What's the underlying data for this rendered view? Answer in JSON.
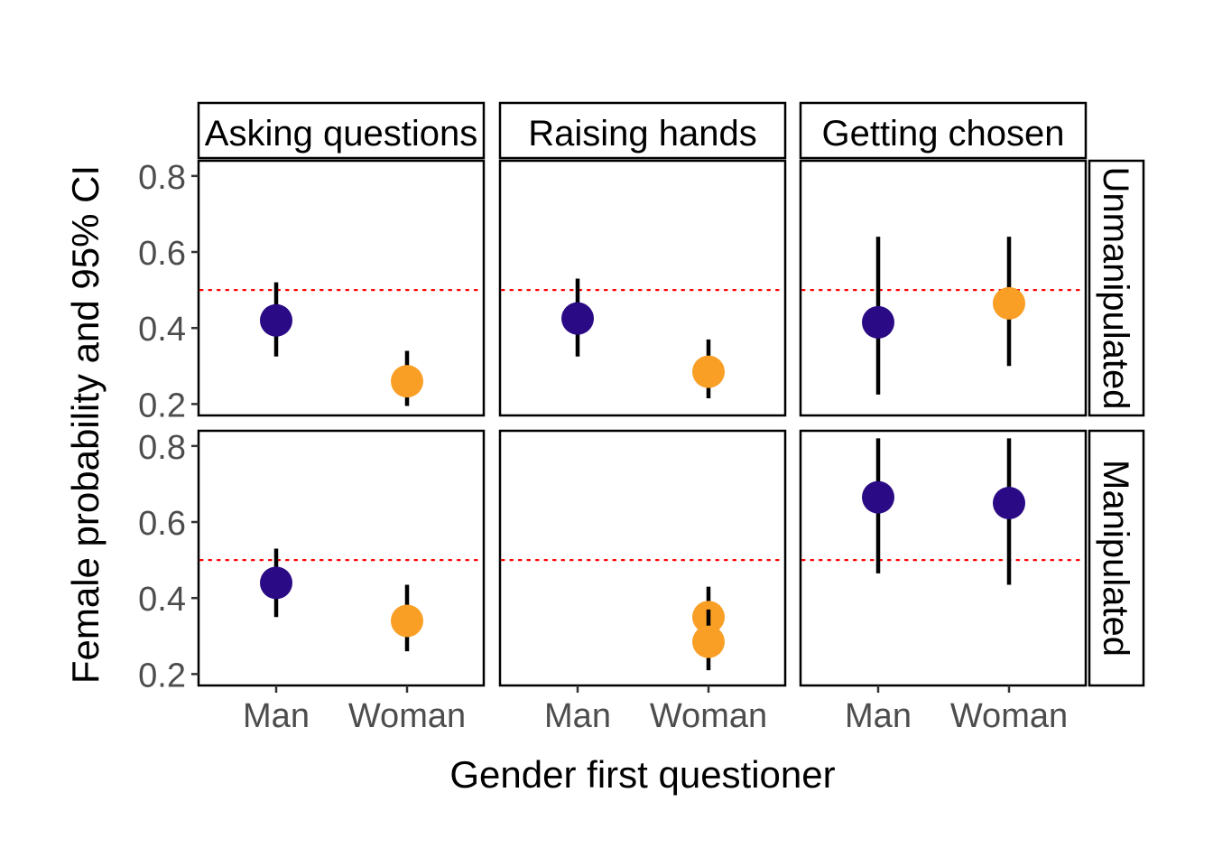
{
  "chart_data": {
    "type": "scatter",
    "title": "",
    "xlabel": "Gender first questioner",
    "ylabel": "Female probability and 95% CI",
    "ylim": [
      0.17,
      0.84
    ],
    "yticks": [
      0.2,
      0.4,
      0.6,
      0.8
    ],
    "ytick_labels": [
      "0.2",
      "0.4",
      "0.6",
      "0.8"
    ],
    "categories": [
      "Man",
      "Woman"
    ],
    "reference_line": 0.5,
    "reference_color": "#ff0000",
    "colors": {
      "Man": "#2a0a85",
      "Woman": "#f99f26",
      "errorbar": "#000000"
    },
    "facet_columns": [
      "Asking questions",
      "Raising hands",
      "Getting chosen"
    ],
    "facet_rows": [
      "Unmanipulated",
      "Manipulated"
    ],
    "panels": [
      {
        "row": "Unmanipulated",
        "col": "Asking questions",
        "points": [
          {
            "x": "Man",
            "y": 0.42,
            "lo": 0.325,
            "hi": 0.52
          },
          {
            "x": "Woman",
            "y": 0.26,
            "lo": 0.195,
            "hi": 0.34
          }
        ]
      },
      {
        "row": "Unmanipulated",
        "col": "Raising hands",
        "points": [
          {
            "x": "Man",
            "y": 0.425,
            "lo": 0.325,
            "hi": 0.53
          },
          {
            "x": "Woman",
            "y": 0.285,
            "lo": 0.215,
            "hi": 0.37
          }
        ]
      },
      {
        "row": "Unmanipulated",
        "col": "Getting chosen",
        "points": [
          {
            "x": "Man",
            "y": 0.415,
            "lo": 0.225,
            "hi": 0.64
          },
          {
            "x": "Woman",
            "y": 0.465,
            "lo": 0.3,
            "hi": 0.64
          }
        ]
      },
      {
        "row": "Manipulated",
        "col": "Asking questions",
        "points": [
          {
            "x": "Man",
            "y": 0.44,
            "lo": 0.35,
            "hi": 0.53
          },
          {
            "x": "Woman",
            "y": 0.34,
            "lo": 0.26,
            "hi": 0.435
          }
        ]
      },
      {
        "row": "Manipulated",
        "col": "Raising hands",
        "points": [
          {
            "x": "Woman",
            "y": 0.35,
            "lo": 0.275,
            "hi": 0.43
          },
          {
            "x": "Woman",
            "y": 0.285,
            "lo": 0.21,
            "hi": 0.37,
            "pos": 2
          }
        ]
      },
      {
        "row": "Manipulated",
        "col": "Getting chosen",
        "points": [
          {
            "x": "Man",
            "y": 0.665,
            "lo": 0.465,
            "hi": 0.82
          },
          {
            "x": "Man",
            "y": 0.65,
            "lo": 0.435,
            "hi": 0.82,
            "pos": 2
          }
        ]
      }
    ]
  }
}
